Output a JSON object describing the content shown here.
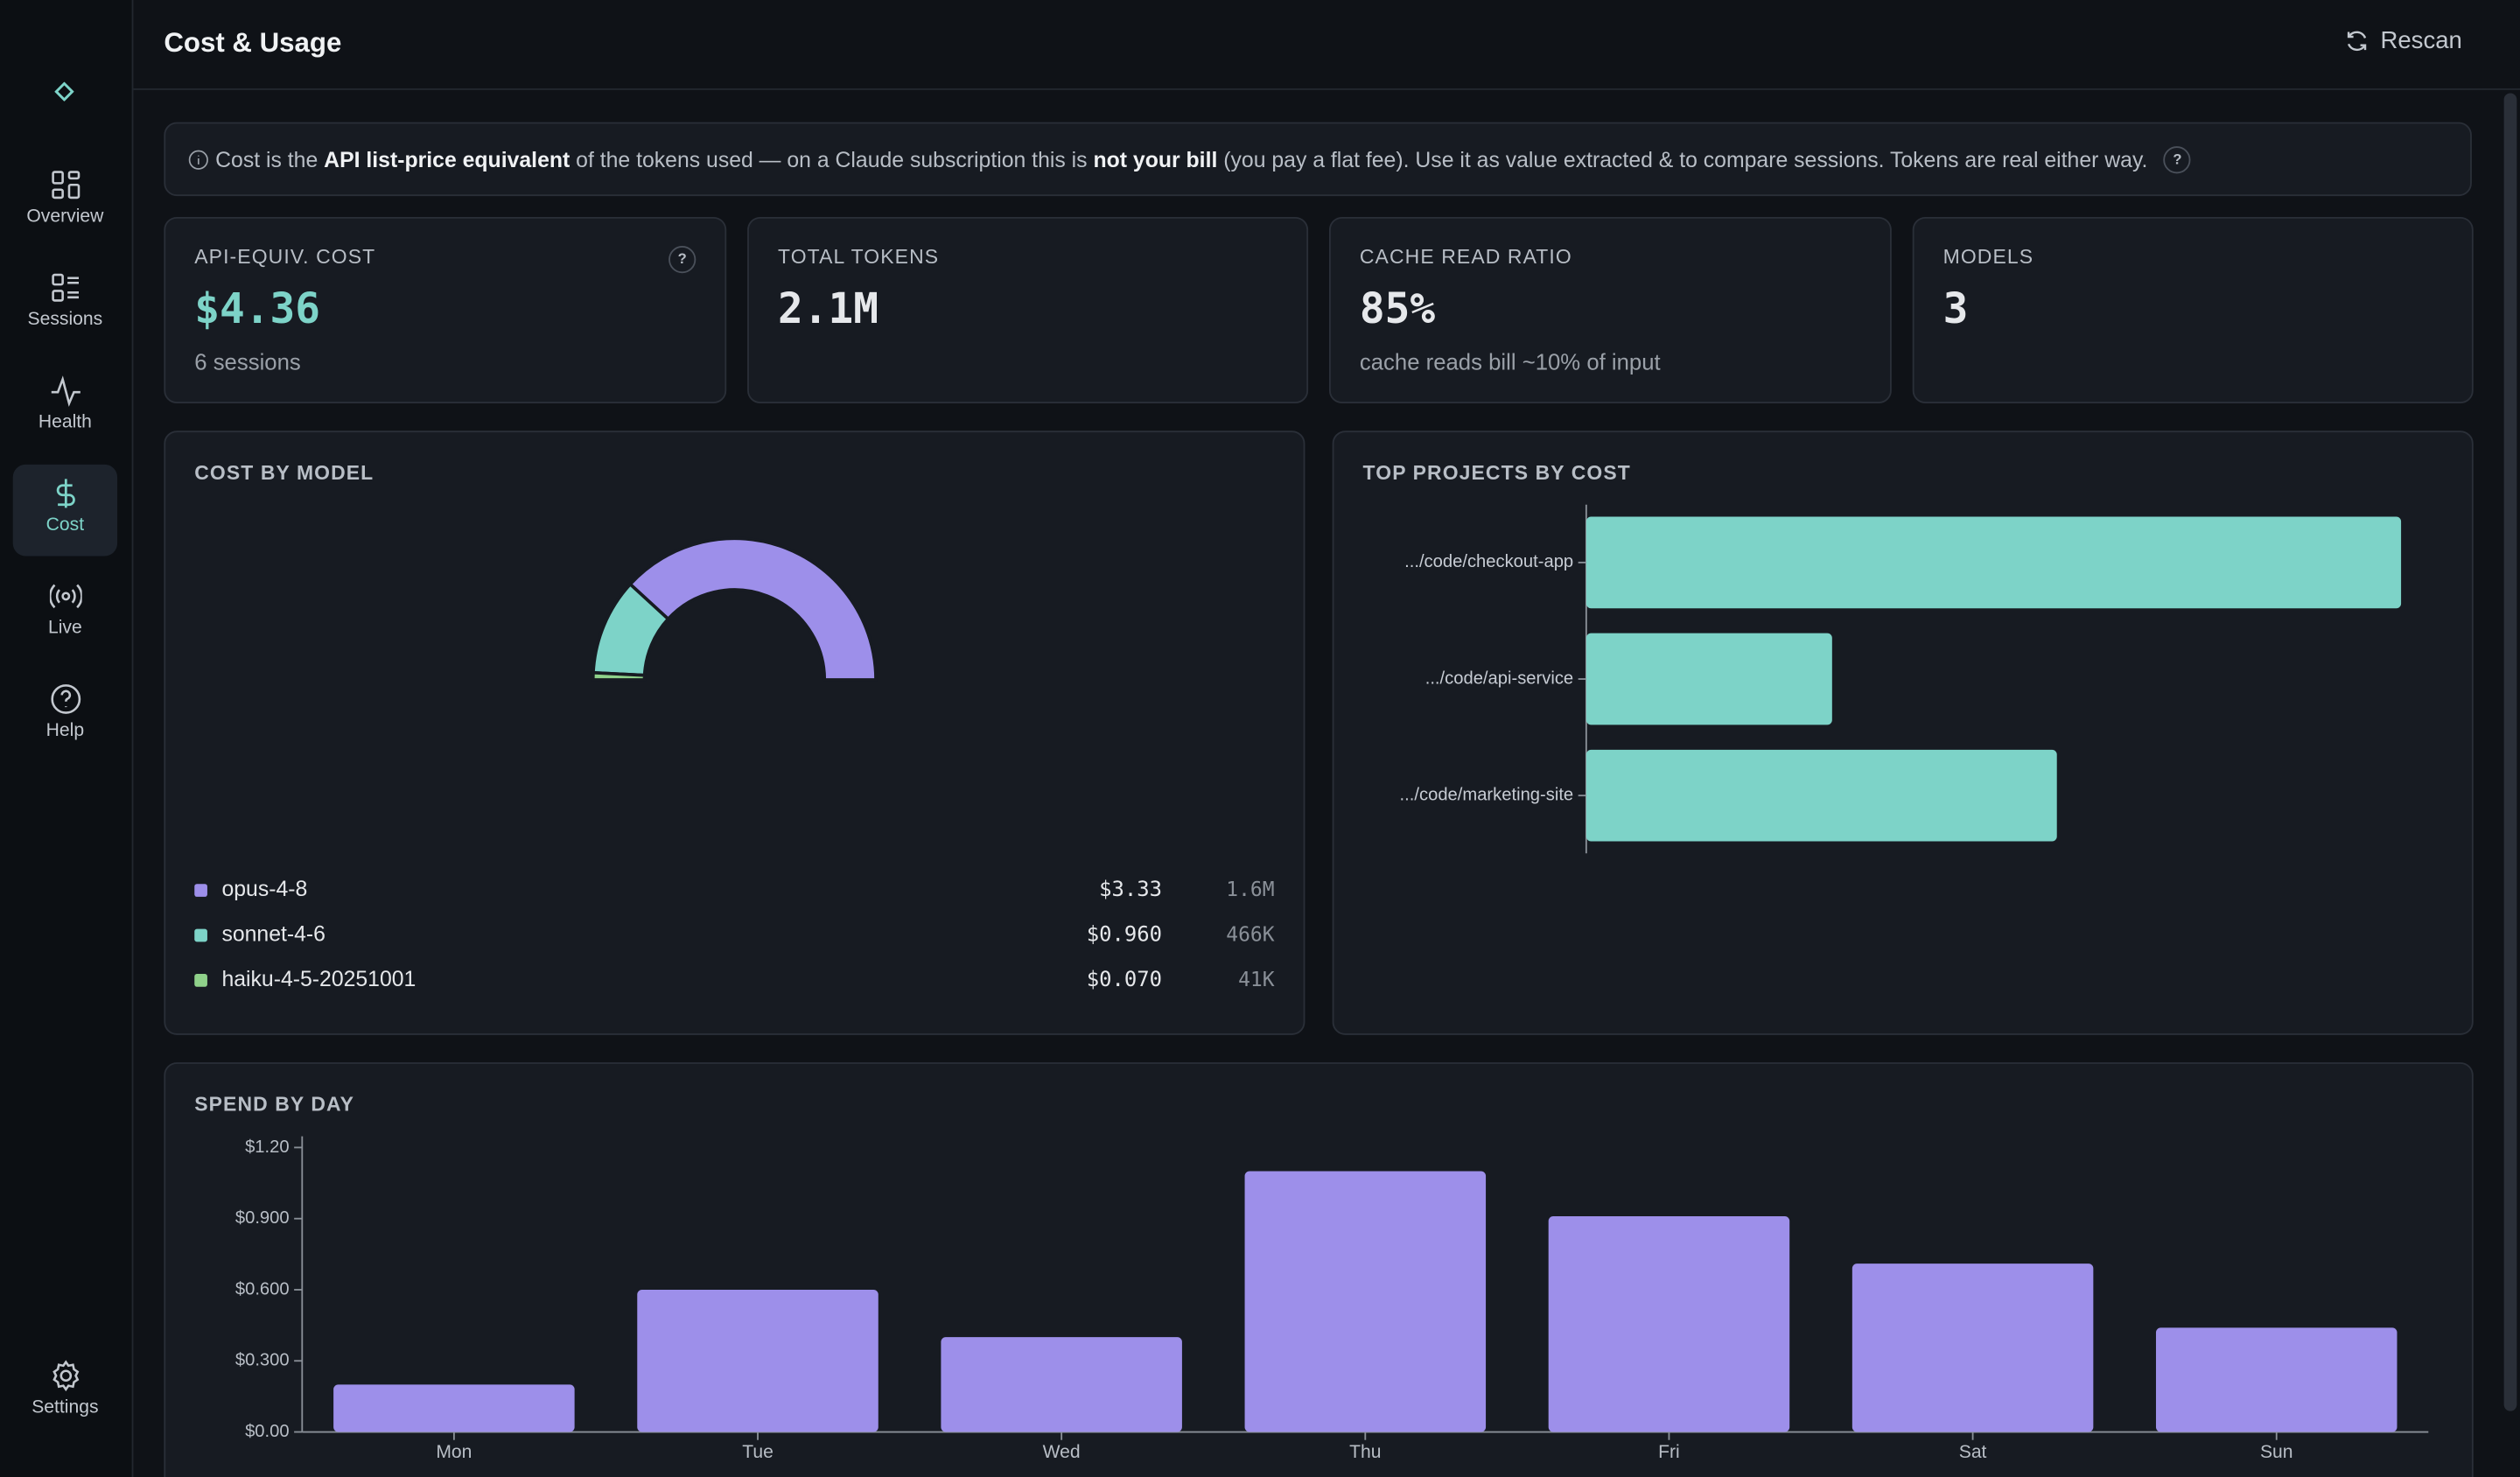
{
  "sidebar": {
    "items": [
      "Overview",
      "Sessions",
      "Health",
      "Cost",
      "Live",
      "Help"
    ],
    "active": 3,
    "settings": "Settings"
  },
  "header": {
    "title": "Cost & Usage",
    "action": "Rescan"
  },
  "notice": {
    "parts": [
      "Cost is the ",
      "API list-price equivalent",
      " of the tokens used — on a Claude subscription this is ",
      "not your bill",
      " (you pay a flat fee). Use it as value extracted & to compare sessions. Tokens are real either way."
    ],
    "help": "?"
  },
  "cards": [
    {
      "label": "API-EQUIV. COST",
      "value": "$4.36",
      "sub": "6 sessions",
      "help": "?"
    },
    {
      "label": "TOTAL TOKENS",
      "value": "2.1M"
    },
    {
      "label": "CACHE READ RATIO",
      "value": "85%",
      "sub": "cache reads bill ~10% of input"
    },
    {
      "label": "MODELS",
      "value": "3"
    }
  ],
  "chart_data": [
    {
      "type": "pie",
      "half": true,
      "title": "COST BY MODEL",
      "categories": [
        "opus-4-8",
        "sonnet-4-6",
        "haiku-4-5-20251001"
      ],
      "values": [
        3.33,
        0.96,
        0.07
      ],
      "value_labels": [
        "$3.33",
        "$0.960",
        "$0.070"
      ],
      "tokens": [
        "1.6M",
        "466K",
        "41K"
      ],
      "colors": [
        "#9d8fea",
        "#7dd3c8",
        "#8fd18a"
      ]
    },
    {
      "type": "bar",
      "orientation": "horizontal",
      "title": "TOP PROJECTS BY COST",
      "categories": [
        ".../code/checkout-app",
        ".../code/api-service",
        ".../code/marketing-site"
      ],
      "values": [
        2.32,
        0.7,
        1.34
      ],
      "color": "#7dd3c8"
    },
    {
      "type": "bar",
      "orientation": "vertical",
      "title": "SPEND BY DAY",
      "categories": [
        "Mon",
        "Tue",
        "Wed",
        "Thu",
        "Fri",
        "Sat",
        "Sun"
      ],
      "values": [
        0.2,
        0.6,
        0.4,
        1.1,
        0.91,
        0.71,
        0.44
      ],
      "color": "#9d8fea",
      "ylim": [
        0,
        1.2
      ],
      "yticks": [
        {
          "value": 0,
          "label": "$0.00"
        },
        {
          "value": 0.3,
          "label": "$0.300"
        },
        {
          "value": 0.6,
          "label": "$0.600"
        },
        {
          "value": 0.9,
          "label": "$0.900"
        },
        {
          "value": 1.2,
          "label": "$1.20"
        }
      ]
    }
  ]
}
